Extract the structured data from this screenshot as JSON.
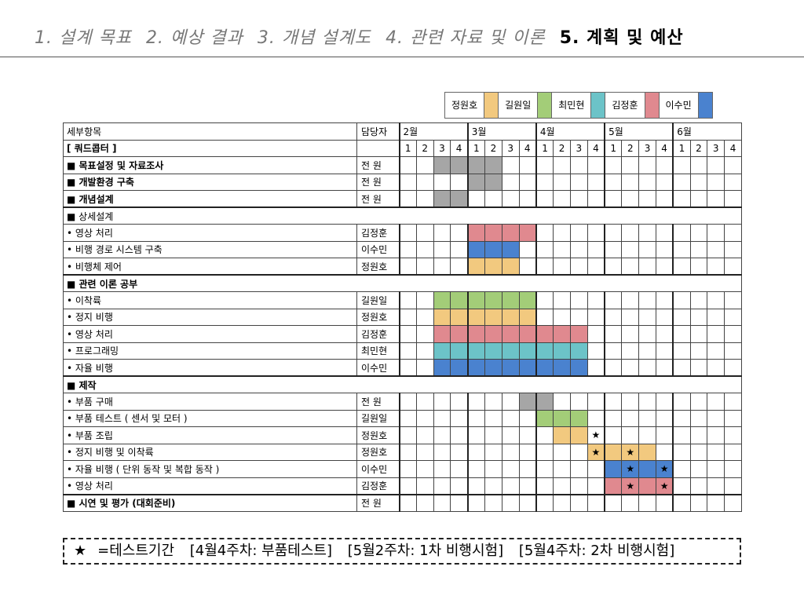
{
  "header": {
    "tabs": [
      {
        "label": "1. 설계 목표",
        "active": false
      },
      {
        "label": "2. 예상 결과",
        "active": false
      },
      {
        "label": "3. 개념 설계도",
        "active": false
      },
      {
        "label": "4. 관련 자료 및 이론",
        "active": false
      },
      {
        "label": "5. 계획 및 예산",
        "active": true
      }
    ]
  },
  "legend": [
    {
      "name": "정원호",
      "color": "#f2c97f"
    },
    {
      "name": "길원일",
      "color": "#a3cd78"
    },
    {
      "name": "최민현",
      "color": "#6cc3c8"
    },
    {
      "name": "김정훈",
      "color": "#e0898f"
    },
    {
      "name": "이수민",
      "color": "#4a82cf"
    }
  ],
  "colors": {
    "전원": "#a6a6a6"
  },
  "table": {
    "col_task": "세부항목",
    "col_owner": "담당자",
    "project": "[ 쿼드콥터 ]",
    "months": [
      "2월",
      "3월",
      "4월",
      "5월",
      "6월"
    ],
    "week_labels": [
      "1",
      "2",
      "3",
      "4"
    ],
    "rows": [
      {
        "task": "■ 목표설정 및 자료조사",
        "owner": "전 원",
        "bold": true,
        "span": false,
        "sep": false,
        "cells": [
          "",
          "",
          "전원",
          "전원",
          "전원",
          "전원",
          "",
          "",
          "",
          "",
          "",
          "",
          "",
          "",
          "",
          "",
          "",
          "",
          "",
          ""
        ],
        "stars": []
      },
      {
        "task": "■ 개발환경 구축",
        "owner": "전 원",
        "bold": true,
        "span": false,
        "sep": false,
        "cells": [
          "",
          "",
          "",
          "",
          "전원",
          "전원",
          "",
          "",
          "",
          "",
          "",
          "",
          "",
          "",
          "",
          "",
          "",
          "",
          "",
          ""
        ],
        "stars": []
      },
      {
        "task": "■ 개념설계",
        "owner": "전 원",
        "bold": true,
        "span": false,
        "sep": false,
        "cells": [
          "",
          "",
          "전원",
          "전원",
          "",
          "",
          "",
          "",
          "",
          "",
          "",
          "",
          "",
          "",
          "",
          "",
          "",
          "",
          "",
          ""
        ],
        "stars": []
      },
      {
        "task": "■ 상세설계",
        "owner": "",
        "bold": false,
        "span": true,
        "sep": true,
        "cells": [],
        "stars": []
      },
      {
        "task": "• 영상 처리",
        "owner": "김정훈",
        "bold": false,
        "span": false,
        "sep": false,
        "cells": [
          "",
          "",
          "",
          "",
          "김정훈",
          "김정훈",
          "김정훈",
          "김정훈",
          "",
          "",
          "",
          "",
          "",
          "",
          "",
          "",
          "",
          "",
          "",
          ""
        ],
        "stars": []
      },
      {
        "task": "• 비행 경로 시스템 구축",
        "owner": "이수민",
        "bold": false,
        "span": false,
        "sep": false,
        "cells": [
          "",
          "",
          "",
          "",
          "이수민",
          "이수민",
          "이수민",
          "",
          "",
          "",
          "",
          "",
          "",
          "",
          "",
          "",
          "",
          "",
          "",
          ""
        ],
        "stars": []
      },
      {
        "task": "• 비행체 제어",
        "owner": "정원호",
        "bold": false,
        "span": false,
        "sep": false,
        "cells": [
          "",
          "",
          "",
          "",
          "정원호",
          "정원호",
          "정원호",
          "",
          "",
          "",
          "",
          "",
          "",
          "",
          "",
          "",
          "",
          "",
          "",
          ""
        ],
        "stars": []
      },
      {
        "task": "■ 관련 이론 공부",
        "owner": "",
        "bold": true,
        "span": true,
        "sep": true,
        "cells": [],
        "stars": []
      },
      {
        "task": "• 이착륙",
        "owner": "길원일",
        "bold": false,
        "span": false,
        "sep": false,
        "cells": [
          "",
          "",
          "길원일",
          "길원일",
          "길원일",
          "길원일",
          "길원일",
          "길원일",
          "",
          "",
          "",
          "",
          "",
          "",
          "",
          "",
          "",
          "",
          "",
          ""
        ],
        "stars": []
      },
      {
        "task": "• 정지 비행",
        "owner": "정원호",
        "bold": false,
        "span": false,
        "sep": false,
        "cells": [
          "",
          "",
          "정원호",
          "정원호",
          "정원호",
          "정원호",
          "정원호",
          "정원호",
          "",
          "",
          "",
          "",
          "",
          "",
          "",
          "",
          "",
          "",
          "",
          ""
        ],
        "stars": []
      },
      {
        "task": "• 영상 처리",
        "owner": "김정훈",
        "bold": false,
        "span": false,
        "sep": false,
        "cells": [
          "",
          "",
          "김정훈",
          "김정훈",
          "김정훈",
          "김정훈",
          "김정훈",
          "김정훈",
          "김정훈",
          "김정훈",
          "김정훈",
          "",
          "",
          "",
          "",
          "",
          "",
          "",
          "",
          ""
        ],
        "stars": []
      },
      {
        "task": "• 프로그래밍",
        "owner": "최민현",
        "bold": false,
        "span": false,
        "sep": false,
        "cells": [
          "",
          "",
          "최민현",
          "최민현",
          "최민현",
          "최민현",
          "최민현",
          "최민현",
          "최민현",
          "최민현",
          "최민현",
          "",
          "",
          "",
          "",
          "",
          "",
          "",
          "",
          ""
        ],
        "stars": []
      },
      {
        "task": "• 자율 비행",
        "owner": "이수민",
        "bold": false,
        "span": false,
        "sep": false,
        "cells": [
          "",
          "",
          "이수민",
          "이수민",
          "이수민",
          "이수민",
          "이수민",
          "이수민",
          "이수민",
          "이수민",
          "이수민",
          "",
          "",
          "",
          "",
          "",
          "",
          "",
          "",
          ""
        ],
        "stars": []
      },
      {
        "task": "■ 제작",
        "owner": "",
        "bold": true,
        "span": true,
        "sep": true,
        "cells": [],
        "stars": []
      },
      {
        "task": "• 부품 구매",
        "owner": "전 원",
        "bold": false,
        "span": false,
        "sep": false,
        "cells": [
          "",
          "",
          "",
          "",
          "",
          "",
          "",
          "전원",
          "전원",
          "",
          "",
          "",
          "",
          "",
          "",
          "",
          "",
          "",
          "",
          ""
        ],
        "stars": []
      },
      {
        "task": "• 부품 테스트 ( 센서 및 모터 )",
        "owner": "길원일",
        "bold": false,
        "span": false,
        "sep": false,
        "cells": [
          "",
          "",
          "",
          "",
          "",
          "",
          "",
          "",
          "길원일",
          "길원일",
          "길원일",
          "",
          "",
          "",
          "",
          "",
          "",
          "",
          "",
          ""
        ],
        "stars": []
      },
      {
        "task": "• 부품 조립",
        "owner": "정원호",
        "bold": false,
        "span": false,
        "sep": false,
        "cells": [
          "",
          "",
          "",
          "",
          "",
          "",
          "",
          "",
          "",
          "정원호",
          "정원호",
          "",
          "",
          "",
          "",
          "",
          "",
          "",
          "",
          ""
        ],
        "stars": [
          11
        ]
      },
      {
        "task": "• 정지 비행 및 이착륙",
        "owner": "정원호",
        "bold": false,
        "span": false,
        "sep": false,
        "cells": [
          "",
          "",
          "",
          "",
          "",
          "",
          "",
          "",
          "",
          "",
          "",
          "정원호",
          "정원호",
          "정원호",
          "정원호",
          "",
          "",
          "",
          "",
          ""
        ],
        "stars": [
          11,
          13
        ]
      },
      {
        "task": "• 자율 비행 ( 단위 동작 및 복합 동작 )",
        "owner": "이수민",
        "bold": false,
        "span": false,
        "sep": false,
        "cells": [
          "",
          "",
          "",
          "",
          "",
          "",
          "",
          "",
          "",
          "",
          "",
          "",
          "이수민",
          "이수민",
          "이수민",
          "이수민",
          "",
          "",
          "",
          ""
        ],
        "stars": [
          13,
          15
        ]
      },
      {
        "task": "• 영상 처리",
        "owner": "김정훈",
        "bold": false,
        "span": false,
        "sep": false,
        "cells": [
          "",
          "",
          "",
          "",
          "",
          "",
          "",
          "",
          "",
          "",
          "",
          "",
          "김정훈",
          "김정훈",
          "김정훈",
          "김정훈",
          "",
          "",
          "",
          ""
        ],
        "stars": [
          13,
          15
        ]
      },
      {
        "task": "■ 시연 및 평가 (대회준비)",
        "owner": "전 원",
        "bold": true,
        "span": false,
        "sep": true,
        "cells": [
          "",
          "",
          "",
          "",
          "",
          "",
          "",
          "",
          "",
          "",
          "",
          "",
          "",
          "",
          "",
          "",
          "",
          "",
          "",
          ""
        ],
        "stars": []
      }
    ]
  },
  "note": {
    "star": "★",
    "legend_text": "=테스트기간",
    "items": [
      "[4월4주차: 부품테스트]",
      "[5월2주차: 1차 비행시험]",
      "[5월4주차: 2차 비행시험]"
    ]
  }
}
